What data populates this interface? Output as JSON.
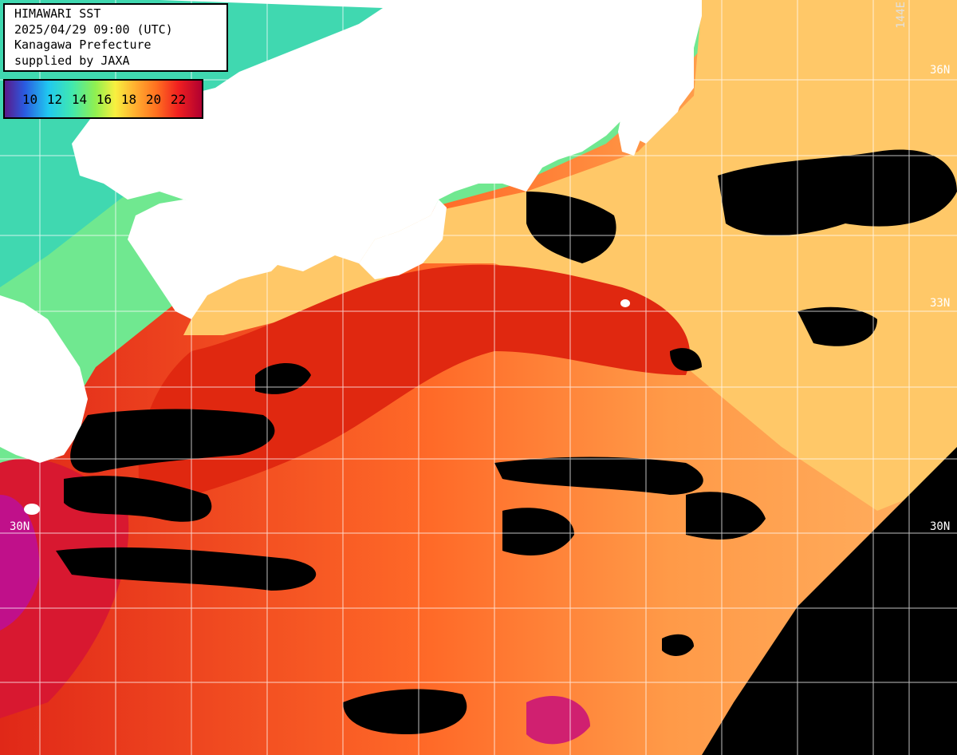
{
  "title": {
    "line1": "HIMAWARI SST",
    "line2": "2025/04/29 09:00 (UTC)",
    "line3": "Kanagawa Prefecture",
    "line4": "supplied by JAXA"
  },
  "legend": {
    "ticks": [
      "10",
      "12",
      "14",
      "16",
      "18",
      "20",
      "22"
    ]
  },
  "grid_labels": {
    "lat_36_right": "36N",
    "lat_33_right": "33N",
    "lat_30_left": "30N",
    "lat_30_right": "30N",
    "lon_144": "144E"
  },
  "colors": {
    "land": "#ffffff",
    "cloud_no_data": "#000000",
    "sst_cold": "#30e0b0",
    "sst_cool": "#90f080",
    "sst_mid": "#ffc060",
    "sst_warm": "#ff7030",
    "sst_hot": "#e02010",
    "sst_hottest": "#c00060"
  }
}
